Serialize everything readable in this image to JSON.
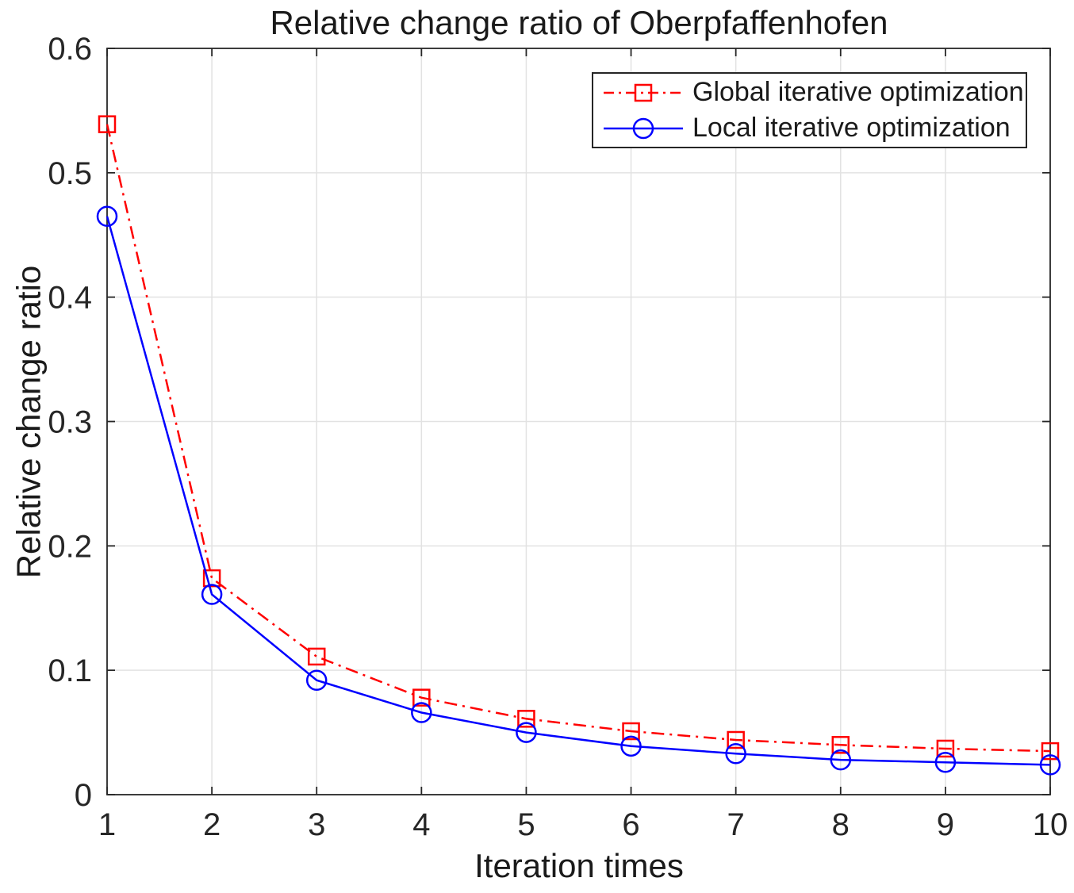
{
  "chart_data": {
    "type": "line",
    "title": "Relative change ratio of Oberpfaffenhofen",
    "xlabel": "Iteration times",
    "ylabel": "Relative change ratio",
    "x": [
      1,
      2,
      3,
      4,
      5,
      6,
      7,
      8,
      9,
      10
    ],
    "xlim": [
      1,
      10
    ],
    "ylim": [
      0,
      0.6
    ],
    "xticks": [
      1,
      2,
      3,
      4,
      5,
      6,
      7,
      8,
      9,
      10
    ],
    "xtick_labels": [
      "1",
      "2",
      "3",
      "4",
      "5",
      "6",
      "7",
      "8",
      "9",
      "10"
    ],
    "yticks": [
      0,
      0.1,
      0.2,
      0.3,
      0.4,
      0.5,
      0.6
    ],
    "ytick_labels": [
      "0",
      "0.1",
      "0.2",
      "0.3",
      "0.4",
      "0.5",
      "0.6"
    ],
    "grid": true,
    "legend_position": "top-right",
    "series": [
      {
        "name": "Global iterative optimization",
        "color": "#ff0000",
        "line_style": "dash-dot",
        "marker": "square",
        "values": [
          0.539,
          0.174,
          0.111,
          0.078,
          0.061,
          0.051,
          0.044,
          0.04,
          0.037,
          0.035
        ]
      },
      {
        "name": "Local iterative optimization",
        "color": "#0000ff",
        "line_style": "solid",
        "marker": "circle",
        "values": [
          0.465,
          0.161,
          0.092,
          0.066,
          0.05,
          0.039,
          0.033,
          0.028,
          0.026,
          0.024
        ]
      }
    ],
    "colors": {
      "grid": "#e2e2e2",
      "axis": "#262626",
      "tick_text": "#262626",
      "background": "#ffffff"
    }
  }
}
